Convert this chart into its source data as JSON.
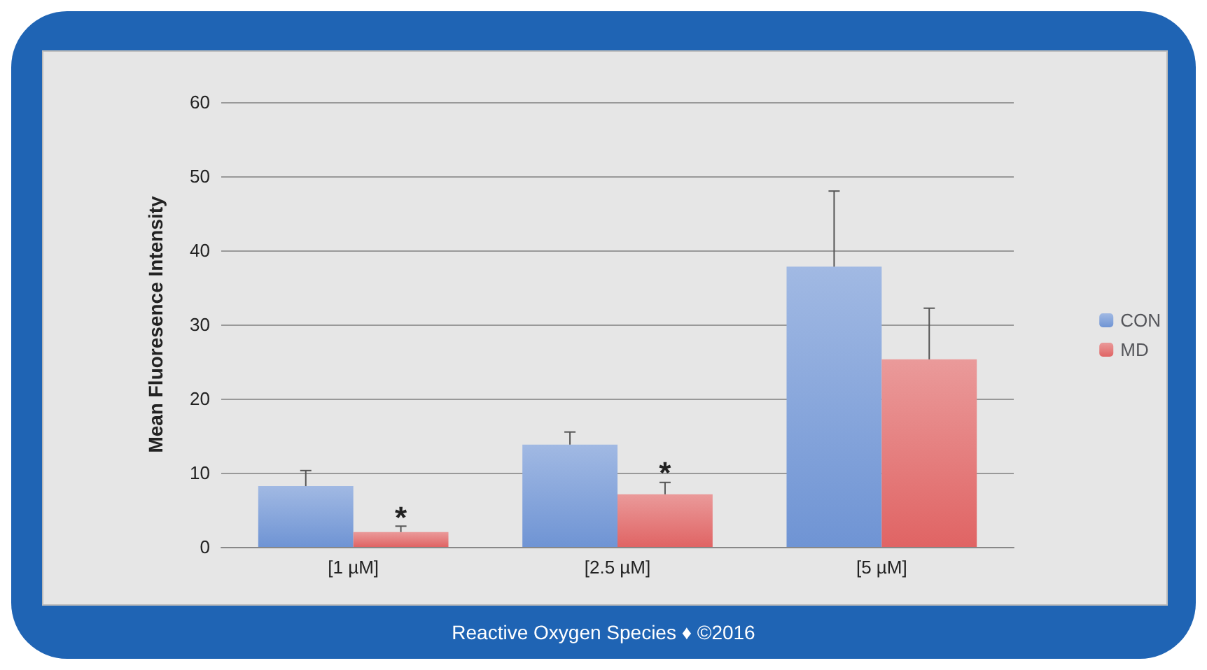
{
  "chart_data": {
    "type": "bar",
    "ylabel": "Mean Fluoresence Intensity",
    "categories": [
      "[1 µM]",
      "[2.5 µM]",
      "[5 µM]"
    ],
    "series": [
      {
        "name": "CON",
        "color": "#6f94d4",
        "values": [
          8.2,
          13.8,
          37.8
        ],
        "errors": [
          [
            8.2,
            10.3
          ],
          [
            13.8,
            15.5
          ],
          [
            37.8,
            48
          ]
        ]
      },
      {
        "name": "MD",
        "color": "#e06464",
        "values": [
          2,
          7.1,
          25.3
        ],
        "errors": [
          [
            2,
            2.8
          ],
          [
            7.1,
            8.7
          ],
          [
            25.3,
            32.2
          ]
        ]
      }
    ],
    "ylim": [
      0,
      60
    ],
    "yticks": [
      0,
      10,
      20,
      30,
      40,
      50,
      60
    ],
    "grid": "y",
    "legend": "right",
    "annotations": [
      {
        "text": "*",
        "x": "[1 µM]",
        "y": 4
      },
      {
        "text": "*",
        "x": "[2.5 µM]",
        "y": 10
      },
      "Reactive Oxygen Species ♦ ©2016"
    ]
  }
}
